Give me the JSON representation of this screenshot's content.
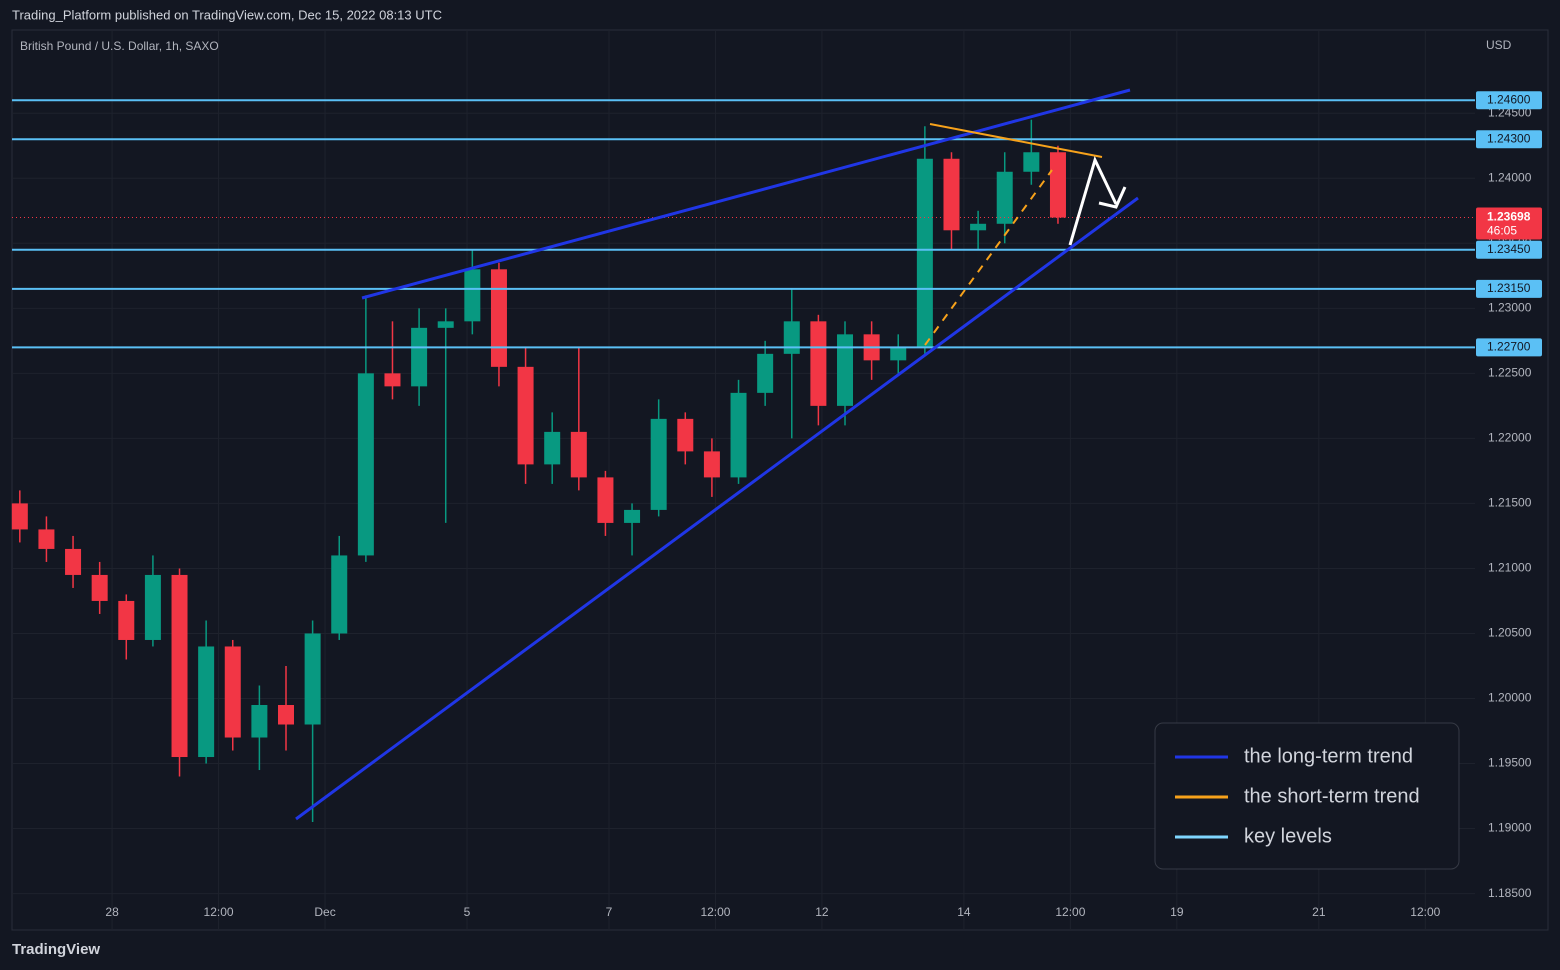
{
  "header": {
    "publisher_line": "Trading_Platform published on TradingView.com, Dec 15, 2022 08:13 UTC"
  },
  "chart_data": {
    "type": "candlestick",
    "title": "British Pound / U.S. Dollar, 1h, SAXO",
    "currency": "USD",
    "x": [
      -1.3,
      -0.925,
      -0.55,
      -0.175,
      0.2,
      0.575,
      0.95,
      1.325,
      1.7,
      2.075,
      2.45,
      2.825,
      3.2,
      3.575,
      3.95,
      4.325,
      4.7,
      5.075,
      5.45,
      5.825,
      6.2,
      6.575,
      6.95,
      7.325,
      7.7,
      8.075,
      8.45,
      8.825,
      9.2,
      9.575,
      9.95,
      10.325,
      10.7,
      11.075,
      11.45,
      11.825,
      12.2,
      12.575,
      12.95,
      13.325
    ],
    "open": [
      1.215,
      1.213,
      1.2115,
      1.2095,
      1.2075,
      1.2045,
      1.2095,
      1.1955,
      1.204,
      1.197,
      1.1995,
      1.198,
      1.205,
      1.211,
      1.225,
      1.224,
      1.2285,
      1.229,
      1.233,
      1.2255,
      1.218,
      1.2205,
      1.217,
      1.2135,
      1.2145,
      1.2215,
      1.219,
      1.217,
      1.2235,
      1.2265,
      1.229,
      1.2225,
      1.228,
      1.226,
      1.227,
      1.2415,
      1.236,
      1.2365,
      1.2405,
      1.242
    ],
    "high": [
      1.216,
      1.214,
      1.2125,
      1.2105,
      1.208,
      1.211,
      1.21,
      1.206,
      1.2045,
      1.201,
      1.2025,
      1.206,
      1.2125,
      1.231,
      1.229,
      1.23,
      1.23,
      1.2345,
      1.2335,
      1.227,
      1.222,
      1.227,
      1.2175,
      1.215,
      1.223,
      1.222,
      1.22,
      1.2245,
      1.2275,
      1.2315,
      1.2295,
      1.229,
      1.229,
      1.228,
      1.244,
      1.242,
      1.2375,
      1.242,
      1.2445,
      1.2425
    ],
    "low": [
      1.212,
      1.2105,
      1.2085,
      1.2065,
      1.203,
      1.204,
      1.194,
      1.195,
      1.196,
      1.1945,
      1.196,
      1.1905,
      1.2045,
      1.2105,
      1.223,
      1.2225,
      1.2135,
      1.228,
      1.224,
      1.2165,
      1.2165,
      1.216,
      1.2125,
      1.211,
      1.214,
      1.218,
      1.2155,
      1.2165,
      1.2225,
      1.22,
      1.221,
      1.221,
      1.2245,
      1.225,
      1.2265,
      1.2345,
      1.2345,
      1.235,
      1.2395,
      1.2365
    ],
    "close": [
      1.213,
      1.2115,
      1.2095,
      1.2075,
      1.2045,
      1.2095,
      1.1955,
      1.204,
      1.197,
      1.1995,
      1.198,
      1.205,
      1.211,
      1.225,
      1.224,
      1.2285,
      1.229,
      1.233,
      1.2255,
      1.218,
      1.2205,
      1.217,
      1.2135,
      1.2145,
      1.2215,
      1.219,
      1.217,
      1.2235,
      1.2265,
      1.229,
      1.2225,
      1.228,
      1.226,
      1.227,
      1.2415,
      1.236,
      1.2365,
      1.2405,
      1.242,
      1.23698
    ],
    "up_color": "#089981",
    "down_color": "#f23645",
    "xlim": [
      -1.41,
      19.2
    ],
    "xticks": [
      {
        "value": 0,
        "label": "28"
      },
      {
        "value": 1.5,
        "label": "12:00"
      },
      {
        "value": 3,
        "label": "Dec"
      },
      {
        "value": 5,
        "label": "5"
      },
      {
        "value": 7,
        "label": "7"
      },
      {
        "value": 8.5,
        "label": "12:00"
      },
      {
        "value": 10,
        "label": "12"
      },
      {
        "value": 12,
        "label": "14"
      },
      {
        "value": 13.5,
        "label": "12:00"
      },
      {
        "value": 15,
        "label": "19"
      },
      {
        "value": 17,
        "label": "21"
      },
      {
        "value": 18.5,
        "label": "12:00"
      }
    ],
    "ylim": [
      1.1822,
      1.2514
    ],
    "yticks": [
      {
        "value": 1.245,
        "label": "1.24500"
      },
      {
        "value": 1.24,
        "label": "1.24000"
      },
      {
        "value": 1.235,
        "label": "1.23500"
      },
      {
        "value": 1.23,
        "label": "1.23000"
      },
      {
        "value": 1.225,
        "label": "1.22500"
      },
      {
        "value": 1.22,
        "label": "1.22000"
      },
      {
        "value": 1.215,
        "label": "1.21500"
      },
      {
        "value": 1.21,
        "label": "1.21000"
      },
      {
        "value": 1.205,
        "label": "1.20500"
      },
      {
        "value": 1.2,
        "label": "1.20000"
      },
      {
        "value": 1.195,
        "label": "1.19500"
      },
      {
        "value": 1.19,
        "label": "1.19000"
      },
      {
        "value": 1.185,
        "label": "1.18500"
      }
    ],
    "levels": [
      {
        "value": 1.246,
        "label": "1.24600"
      },
      {
        "value": 1.243,
        "label": "1.24300"
      },
      {
        "value": 1.2345,
        "label": "1.23450"
      },
      {
        "value": 1.2315,
        "label": "1.23150"
      },
      {
        "value": 1.227,
        "label": "1.22700"
      }
    ],
    "level_color": "#5bc0f5",
    "last_price": 1.23698,
    "countdown": "46:05",
    "legend": [
      {
        "name": "the long-term trend",
        "color": "#2036e6"
      },
      {
        "name": "the short-term trend",
        "color": "#f7a21b"
      },
      {
        "name": "key levels",
        "color": "#7fd6ff"
      }
    ]
  },
  "footer": {
    "brand": "TradingView"
  }
}
